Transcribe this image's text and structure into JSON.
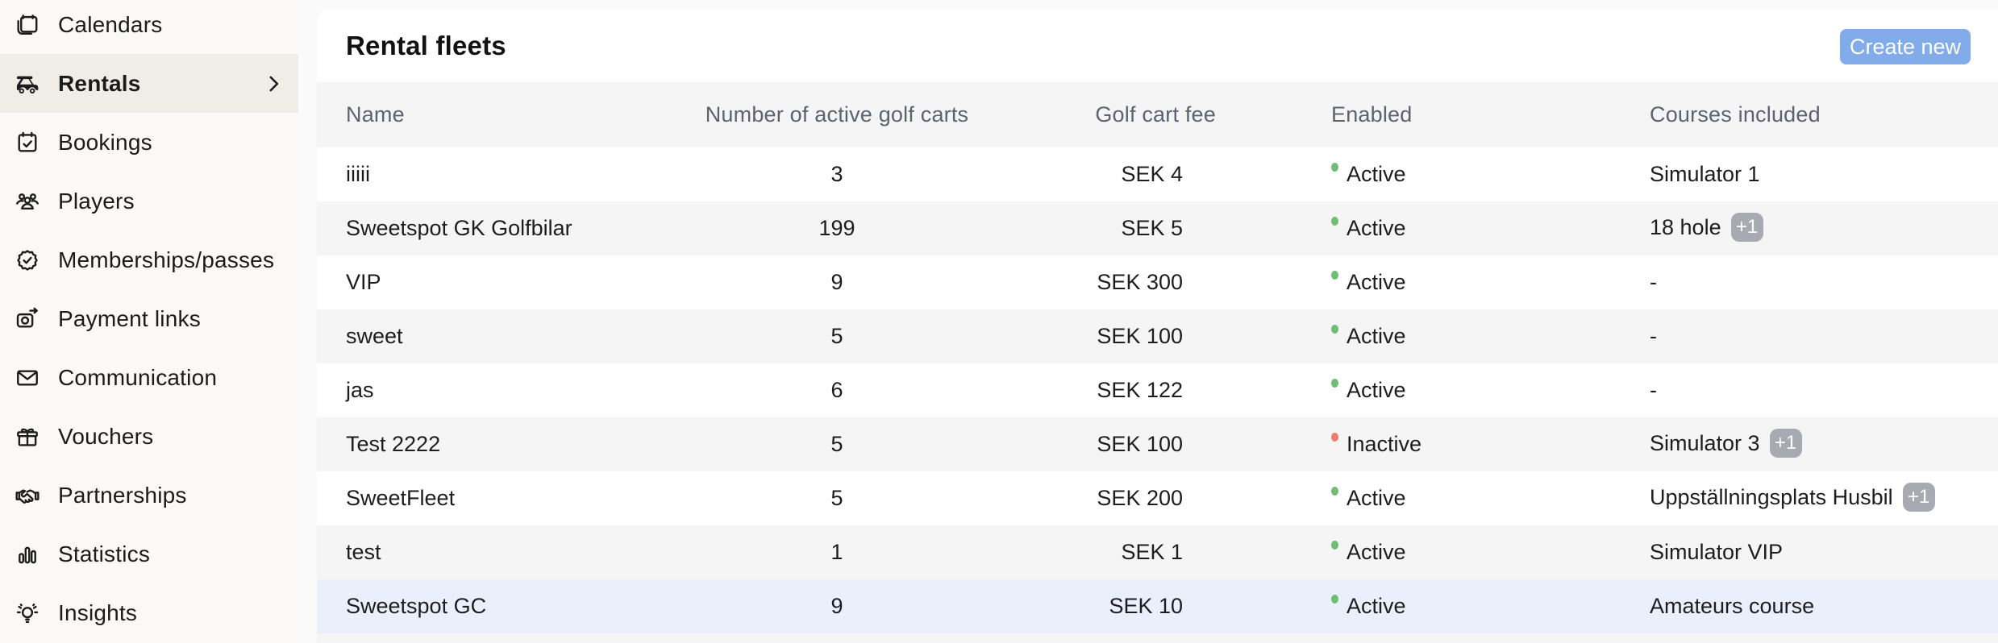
{
  "sidebar": {
    "items": [
      {
        "label": "Calendars",
        "icon": "calendars-icon",
        "selected": false
      },
      {
        "label": "Rentals",
        "icon": "golf-cart-icon",
        "selected": true,
        "chevron": true
      },
      {
        "label": "Bookings",
        "icon": "calendar-check-icon",
        "selected": false
      },
      {
        "label": "Players",
        "icon": "players-icon",
        "selected": false
      },
      {
        "label": "Memberships/passes",
        "icon": "membership-badge-icon",
        "selected": false
      },
      {
        "label": "Payment links",
        "icon": "payment-links-icon",
        "selected": false
      },
      {
        "label": "Communication",
        "icon": "envelope-icon",
        "selected": false
      },
      {
        "label": "Vouchers",
        "icon": "gift-icon",
        "selected": false
      },
      {
        "label": "Partnerships",
        "icon": "handshake-icon",
        "selected": false
      },
      {
        "label": "Statistics",
        "icon": "bar-chart-icon",
        "selected": false
      },
      {
        "label": "Insights",
        "icon": "lightbulb-icon",
        "selected": false
      }
    ]
  },
  "header": {
    "title": "Rental fleets",
    "create_button_label": "Create new"
  },
  "table": {
    "columns": [
      "Name",
      "Number of active golf carts",
      "Golf cart fee",
      "Enabled",
      "Courses included"
    ],
    "rows": [
      {
        "name": "iiiii",
        "carts": "3",
        "fee": "SEK 4",
        "enabled_label": "Active",
        "status": "active",
        "courses": "Simulator 1",
        "badge": null,
        "highlighted": false
      },
      {
        "name": "Sweetspot GK Golfbilar",
        "carts": "199",
        "fee": "SEK 5",
        "enabled_label": "Active",
        "status": "active",
        "courses": "18 hole",
        "badge": "+1",
        "highlighted": false
      },
      {
        "name": "VIP",
        "carts": "9",
        "fee": "SEK 300",
        "enabled_label": "Active",
        "status": "active",
        "courses": "-",
        "badge": null,
        "highlighted": false
      },
      {
        "name": "sweet",
        "carts": "5",
        "fee": "SEK 100",
        "enabled_label": "Active",
        "status": "active",
        "courses": "-",
        "badge": null,
        "highlighted": false
      },
      {
        "name": "jas",
        "carts": "6",
        "fee": "SEK 122",
        "enabled_label": "Active",
        "status": "active",
        "courses": "-",
        "badge": null,
        "highlighted": false
      },
      {
        "name": "Test 2222",
        "carts": "5",
        "fee": "SEK 100",
        "enabled_label": "Inactive",
        "status": "inactive",
        "courses": "Simulator 3",
        "badge": "+1",
        "highlighted": false
      },
      {
        "name": "SweetFleet",
        "carts": "5",
        "fee": "SEK 200",
        "enabled_label": "Active",
        "status": "active",
        "courses": "Uppställningsplats Husbil",
        "badge": "+1",
        "highlighted": false
      },
      {
        "name": "test",
        "carts": "1",
        "fee": "SEK 1",
        "enabled_label": "Active",
        "status": "active",
        "courses": "Simulator VIP",
        "badge": null,
        "highlighted": false
      },
      {
        "name": "Sweetspot GC",
        "carts": "9",
        "fee": "SEK 10",
        "enabled_label": "Active",
        "status": "active",
        "courses": "Amateurs course",
        "badge": null,
        "highlighted": true
      }
    ]
  },
  "colors": {
    "accent_blue": "#82abea",
    "active_dot": "#6fbe73",
    "inactive_dot": "#ee7c72",
    "badge_gray": "#a7abb1",
    "highlight_row": "#e9f0fb",
    "sidebar_bg": "#faf9f6",
    "sidebar_selected_bg": "#f0ede6",
    "row_alt_bg": "#f5f5f6"
  }
}
